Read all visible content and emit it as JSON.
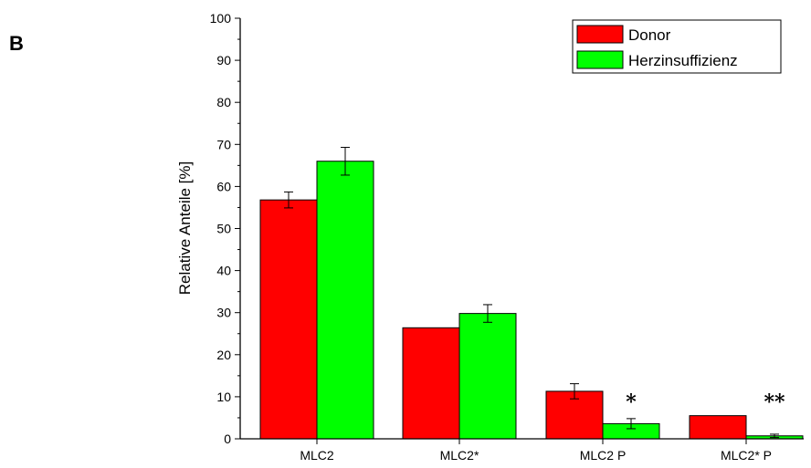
{
  "panel_label": "B",
  "chart_data": {
    "type": "bar",
    "title": "",
    "xlabel": "",
    "ylabel": "Relative Anteile [%]",
    "ylim": [
      0,
      100
    ],
    "yticks": [
      0,
      10,
      20,
      30,
      40,
      50,
      60,
      70,
      80,
      90,
      100
    ],
    "categories": [
      "MLC2",
      "MLC2*",
      "MLC2 P",
      "MLC2* P"
    ],
    "series": [
      {
        "name": "Donor",
        "color": "#ff0000",
        "values": [
          56.8,
          26.4,
          11.3,
          5.5
        ],
        "errors": [
          1.9,
          0.0,
          1.8,
          0.0
        ]
      },
      {
        "name": "Herzinsuffizienz",
        "color": "#00ff00",
        "values": [
          66.0,
          29.8,
          3.6,
          0.7
        ],
        "errors": [
          3.3,
          2.1,
          1.2,
          0.4
        ]
      }
    ],
    "annotations": [
      {
        "category": "MLC2 P",
        "text": "*"
      },
      {
        "category": "MLC2* P",
        "text": "**"
      }
    ],
    "grid": false,
    "legend_position": "top-right"
  }
}
